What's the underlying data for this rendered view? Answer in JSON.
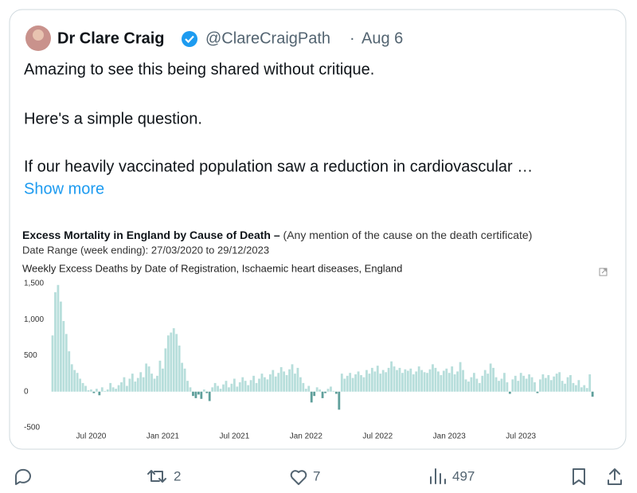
{
  "tweet": {
    "name": "Dr Clare Craig",
    "handle": "@ClareCraigPath",
    "separator": "·",
    "date": "Aug 6",
    "lines": [
      "Amazing to see this being shared without critique.",
      "Here's a simple question.",
      "If our heavily vaccinated population saw a reduction in cardiovascular …"
    ],
    "show_more": "Show more",
    "retweets": 2,
    "likes": 7,
    "views": 497
  },
  "chart_data": {
    "type": "bar",
    "title": "Excess Mortality in England by Cause of Death –",
    "title_note": "(Any mention of the cause on the death certificate)",
    "date_range": "Date Range (week ending): 27/03/2020 to 29/12/2023",
    "subtitle": "Weekly Excess Deaths by Date of Registration, Ischaemic heart diseases, England",
    "values": [
      780,
      1380,
      1480,
      1250,
      980,
      800,
      560,
      380,
      300,
      260,
      180,
      120,
      80,
      20,
      30,
      -20,
      40,
      -50,
      60,
      10,
      30,
      120,
      60,
      40,
      90,
      130,
      200,
      80,
      180,
      250,
      140,
      190,
      270,
      200,
      390,
      350,
      250,
      180,
      220,
      430,
      320,
      600,
      780,
      820,
      880,
      800,
      640,
      400,
      320,
      150,
      60,
      -60,
      -90,
      -40,
      -100,
      30,
      -20,
      -130,
      60,
      120,
      80,
      40,
      100,
      150,
      60,
      110,
      180,
      70,
      130,
      200,
      150,
      90,
      160,
      220,
      120,
      180,
      250,
      200,
      170,
      240,
      300,
      210,
      260,
      340,
      280,
      230,
      310,
      380,
      250,
      330,
      200,
      120,
      40,
      80,
      -150,
      -60,
      60,
      30,
      -90,
      -20,
      40,
      70,
      10,
      -30,
      -250,
      250,
      180,
      220,
      260,
      190,
      240,
      280,
      230,
      200,
      300,
      250,
      330,
      280,
      360,
      250,
      300,
      270,
      330,
      420,
      350,
      300,
      330,
      260,
      310,
      290,
      320,
      240,
      280,
      350,
      300,
      270,
      260,
      310,
      380,
      330,
      280,
      230,
      290,
      320,
      260,
      350,
      240,
      280,
      410,
      300,
      170,
      140,
      200,
      260,
      180,
      120,
      220,
      300,
      250,
      390,
      330,
      200,
      150,
      180,
      260,
      130,
      -30,
      170,
      220,
      150,
      260,
      220,
      180,
      240,
      200,
      130,
      -20,
      170,
      240,
      190,
      230,
      160,
      210,
      250,
      270,
      150,
      110,
      200,
      230,
      120,
      90,
      160,
      60,
      90,
      50,
      240,
      -70
    ],
    "color": "#b7dedb",
    "negative_color": "#5f9f9b",
    "ylim": [
      -500,
      1500
    ],
    "yticks": [
      -500,
      0,
      500,
      {
        "value": 1000,
        "label": "1,000"
      },
      {
        "value": 1500,
        "label": "1,500"
      }
    ],
    "xticks": [
      "Jul 2020",
      "Jan 2021",
      "Jul 2021",
      "Jan 2022",
      "Jul 2022",
      "Jan 2023",
      "Jul 2023"
    ]
  }
}
